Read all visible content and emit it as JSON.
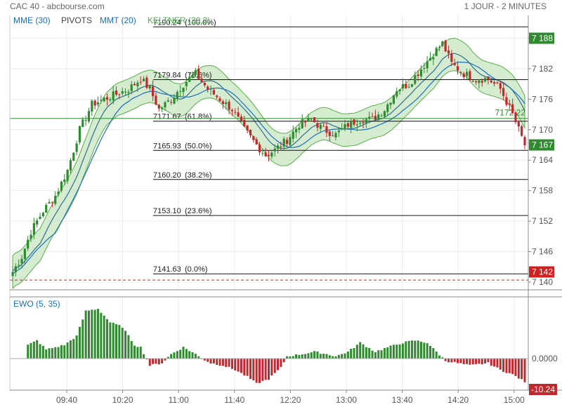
{
  "header": {
    "title": "CAC 40 - abcbourse.com",
    "period": "1 JOUR - 2 MINUTES"
  },
  "indicators": [
    {
      "label": "MME (30)",
      "color": "#1a6fc4"
    },
    {
      "label": "PIVOTS",
      "color": "#444444"
    },
    {
      "label": "MMT (20)",
      "color": "#1a6fc4"
    },
    {
      "label": "KELTNER (20,2)",
      "color": "#4caf50"
    }
  ],
  "subchart": {
    "label": "EWO (5, 35)"
  },
  "colors": {
    "up": "#2e8b2e",
    "down": "#c0282d",
    "band_fill": "#c8e6c0",
    "band_line": "#58b048",
    "mme": "#1a6fc4",
    "mmt": "#2d6f8f",
    "pivot": "#2e8b2e",
    "ref": "#d02020"
  },
  "chart_data": [
    {
      "type": "candlestick",
      "title": "CAC 40",
      "x_ticks": [
        "09:40",
        "10:20",
        "11:00",
        "11:40",
        "12:20",
        "13:00",
        "13:40",
        "14:20",
        "15:00"
      ],
      "y_ticks": [
        "7 188",
        "7 182",
        "7 176",
        "7 170",
        "7 164",
        "7 158",
        "7 152",
        "7 146",
        "7 140"
      ],
      "ylim": [
        7140,
        7190
      ],
      "fibonacci": [
        {
          "price": 7190.24,
          "label": "7190.24",
          "pct": "(100.0%)"
        },
        {
          "price": 7179.84,
          "label": "7179.84",
          "pct": "(78.6%)"
        },
        {
          "price": 7171.67,
          "label": "7171.67",
          "pct": "(61.8%)"
        },
        {
          "price": 7165.93,
          "label": "7165.93",
          "pct": "(50.0%)"
        },
        {
          "price": 7160.2,
          "label": "7160.20",
          "pct": "(38.2%)"
        },
        {
          "price": 7153.1,
          "label": "7153.10",
          "pct": "(23.6%)"
        },
        {
          "price": 7141.63,
          "label": "7141.63",
          "pct": "(0.0%)"
        }
      ],
      "pivot": {
        "price": 7172.22,
        "label": "7172.22"
      },
      "badges": [
        {
          "price": 7188,
          "label": "7 188"
        },
        {
          "price": 7167,
          "label": "7 167",
          "kind": "last"
        },
        {
          "price": 7142,
          "label": "7 142",
          "kind": "ref"
        }
      ],
      "ref_line": 7140.4,
      "close_anchors": [
        [
          0,
          7142
        ],
        [
          3,
          7145
        ],
        [
          6,
          7150
        ],
        [
          10,
          7154
        ],
        [
          14,
          7157
        ],
        [
          18,
          7162
        ],
        [
          22,
          7170
        ],
        [
          26,
          7175
        ],
        [
          30,
          7176
        ],
        [
          34,
          7177
        ],
        [
          38,
          7178
        ],
        [
          42,
          7180
        ],
        [
          45,
          7178
        ],
        [
          48,
          7174
        ],
        [
          52,
          7176
        ],
        [
          56,
          7179
        ],
        [
          60,
          7181
        ],
        [
          64,
          7178
        ],
        [
          68,
          7176
        ],
        [
          72,
          7174
        ],
        [
          76,
          7170
        ],
        [
          80,
          7167
        ],
        [
          83,
          7165
        ],
        [
          86,
          7166
        ],
        [
          90,
          7168
        ],
        [
          94,
          7171
        ],
        [
          98,
          7172
        ],
        [
          102,
          7170
        ],
        [
          106,
          7169
        ],
        [
          110,
          7171
        ],
        [
          114,
          7172
        ],
        [
          118,
          7172
        ],
        [
          122,
          7174
        ],
        [
          126,
          7178
        ],
        [
          130,
          7179
        ],
        [
          134,
          7182
        ],
        [
          138,
          7185
        ],
        [
          141,
          7187
        ],
        [
          144,
          7183
        ],
        [
          148,
          7181
        ],
        [
          152,
          7180
        ],
        [
          156,
          7180
        ],
        [
          160,
          7178
        ],
        [
          164,
          7173
        ],
        [
          168,
          7167
        ]
      ]
    },
    {
      "type": "bar",
      "title": "EWO (5, 35)",
      "y_ticks": [
        "0.0000"
      ],
      "last_value": "-10.24",
      "ylim": [
        -12,
        24
      ],
      "value_anchors": [
        [
          0,
          5
        ],
        [
          5,
          6
        ],
        [
          8,
          8
        ],
        [
          11,
          4
        ],
        [
          14,
          5
        ],
        [
          17,
          6
        ],
        [
          21,
          10
        ],
        [
          24,
          21
        ],
        [
          28,
          22
        ],
        [
          32,
          16
        ],
        [
          36,
          14
        ],
        [
          40,
          6
        ],
        [
          42,
          5
        ],
        [
          45,
          -3
        ],
        [
          49,
          -2
        ],
        [
          52,
          2
        ],
        [
          56,
          5
        ],
        [
          60,
          2
        ],
        [
          62,
          0
        ],
        [
          65,
          -2
        ],
        [
          69,
          -3
        ],
        [
          73,
          -5
        ],
        [
          77,
          -8
        ],
        [
          80,
          -11
        ],
        [
          84,
          -9
        ],
        [
          88,
          -4
        ],
        [
          90,
          1
        ],
        [
          95,
          2
        ],
        [
          99,
          3
        ],
        [
          103,
          2
        ],
        [
          106,
          1
        ],
        [
          110,
          3
        ],
        [
          114,
          7
        ],
        [
          119,
          3
        ],
        [
          123,
          5
        ],
        [
          128,
          7
        ],
        [
          132,
          8
        ],
        [
          136,
          7
        ],
        [
          139,
          3
        ],
        [
          142,
          -1
        ],
        [
          146,
          -2
        ],
        [
          150,
          -3
        ],
        [
          156,
          -2
        ],
        [
          160,
          -5
        ],
        [
          164,
          -7
        ],
        [
          168,
          -10.24
        ]
      ]
    }
  ]
}
